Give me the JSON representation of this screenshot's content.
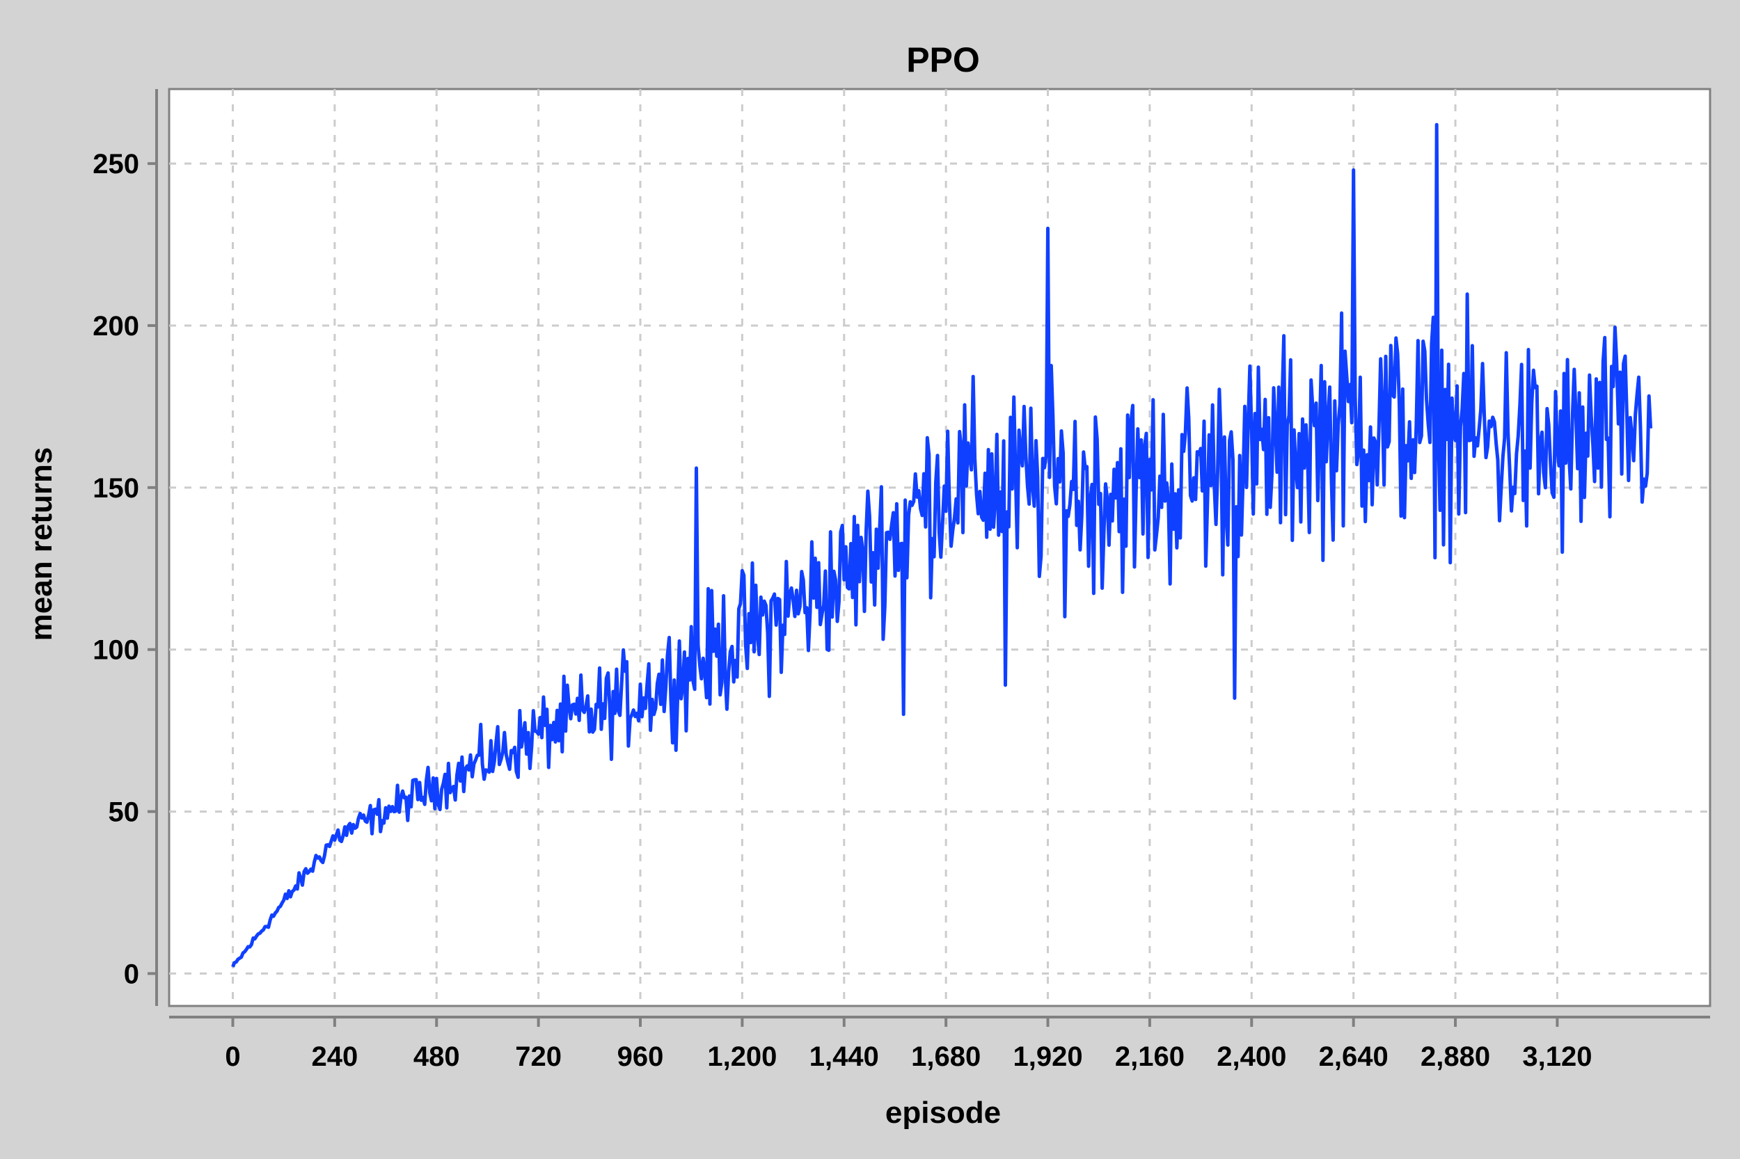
{
  "chart_data": {
    "type": "line",
    "title": "PPO",
    "xlabel": "episode",
    "ylabel": "mean returns",
    "xlim": [
      -150,
      3480
    ],
    "ylim": [
      -10,
      273
    ],
    "x_ticks": [
      0,
      240,
      480,
      720,
      960,
      1200,
      1440,
      1680,
      1920,
      2160,
      2400,
      2640,
      2880,
      3120
    ],
    "x_tick_labels": [
      "0",
      "240",
      "480",
      "720",
      "960",
      "1,200",
      "1,440",
      "1,680",
      "1,920",
      "2,160",
      "2,400",
      "2,640",
      "2,880",
      "3,120"
    ],
    "y_ticks": [
      0,
      50,
      100,
      150,
      200,
      250
    ],
    "y_tick_labels": [
      "0",
      "50",
      "100",
      "150",
      "200",
      "250"
    ],
    "grid": true,
    "series": [
      {
        "color": "#1040ff",
        "x": [
          0,
          240,
          480,
          720,
          960,
          1200,
          1440,
          1680,
          1920,
          2160,
          2400,
          2640,
          2880,
          3120,
          3340
        ],
        "trend": [
          2,
          42,
          58,
          74,
          86,
          104,
          122,
          152,
          150,
          150,
          158,
          170,
          168,
          160,
          170
        ],
        "spread": [
          1,
          5,
          9,
          15,
          19,
          26,
          28,
          35,
          40,
          40,
          40,
          43,
          43,
          43,
          42
        ],
        "peaks": [
          {
            "x": 1092,
            "y": 156
          },
          {
            "x": 1920,
            "y": 230
          },
          {
            "x": 2640,
            "y": 248
          },
          {
            "x": 2835,
            "y": 262
          },
          {
            "x": 2360,
            "y": 85
          },
          {
            "x": 3250,
            "y": 103
          },
          {
            "x": 1820,
            "y": 89
          },
          {
            "x": 1580,
            "y": 80
          }
        ]
      }
    ]
  }
}
